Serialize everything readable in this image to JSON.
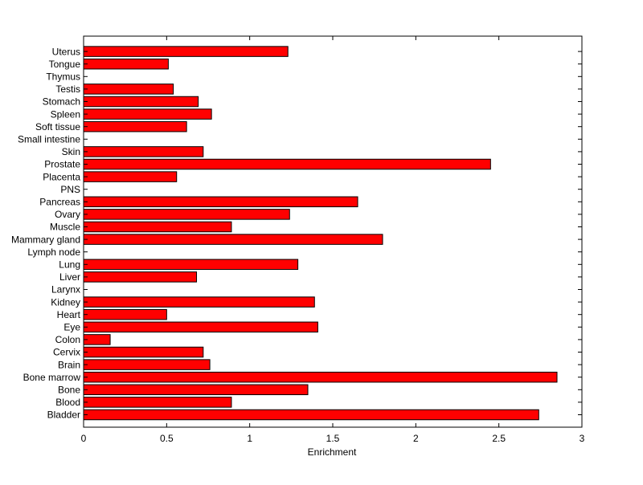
{
  "chart_data": {
    "type": "bar",
    "orientation": "horizontal",
    "title": "",
    "xlabel": "Enrichment",
    "ylabel": "",
    "xlim": [
      0,
      3
    ],
    "xticks": [
      "0",
      "0.5",
      "1",
      "1.5",
      "2",
      "2.5",
      "3"
    ],
    "grid": false,
    "legend": "none",
    "bar_color": "#ff0000",
    "edge_color": "#000000",
    "categories": [
      "Bladder",
      "Blood",
      "Bone",
      "Bone marrow",
      "Brain",
      "Cervix",
      "Colon",
      "Eye",
      "Heart",
      "Kidney",
      "Larynx",
      "Liver",
      "Lung",
      "Lymph node",
      "Mammary gland",
      "Muscle",
      "Ovary",
      "Pancreas",
      "PNS",
      "Placenta",
      "Prostate",
      "Skin",
      "Small intestine",
      "Soft tissue",
      "Spleen",
      "Stomach",
      "Testis",
      "Thymus",
      "Tongue",
      "Uterus"
    ],
    "values": [
      2.74,
      0.89,
      1.35,
      2.85,
      0.76,
      0.72,
      0.16,
      1.41,
      0.5,
      1.39,
      0,
      0.68,
      1.29,
      0,
      1.8,
      0.89,
      1.24,
      1.65,
      0,
      0.56,
      2.45,
      0.72,
      0,
      0.62,
      0.77,
      0.69,
      0.54,
      0,
      0.51,
      1.23
    ]
  }
}
